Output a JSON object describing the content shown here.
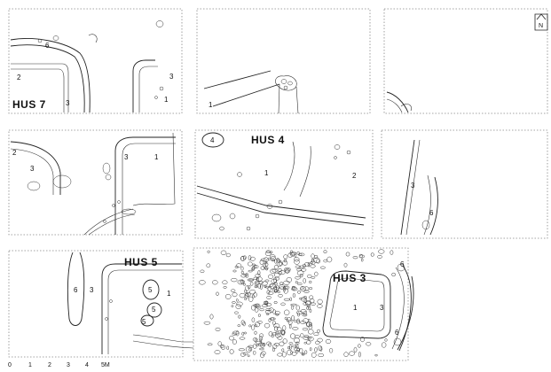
{
  "houses": [
    {
      "id": "hus7",
      "name": "HUS 7",
      "numbers": [
        "6",
        "2",
        "3",
        "3",
        "1"
      ]
    },
    {
      "id": "hus4",
      "name": "HUS 4",
      "numbers": [
        "4",
        "1",
        "2"
      ]
    },
    {
      "id": "hus5",
      "name": "HUS 5",
      "numbers": [
        "6",
        "3",
        "5",
        "1",
        "5",
        "5"
      ]
    },
    {
      "id": "hus3",
      "name": "HUS 3",
      "numbers": [
        "6",
        "1",
        "3",
        "6"
      ]
    }
  ],
  "other_numbers": [
    "1",
    "2",
    "3",
    "3",
    "1",
    "2",
    "3",
    "6"
  ],
  "north_arrow": {
    "label": "N",
    "icon": "north-arrow-icon"
  },
  "scale_bar": {
    "ticks": [
      "0",
      "1",
      "2",
      "3",
      "4",
      "5M"
    ]
  },
  "colors": {
    "line": "#222222",
    "frame": "#888888",
    "background": "#ffffff"
  }
}
